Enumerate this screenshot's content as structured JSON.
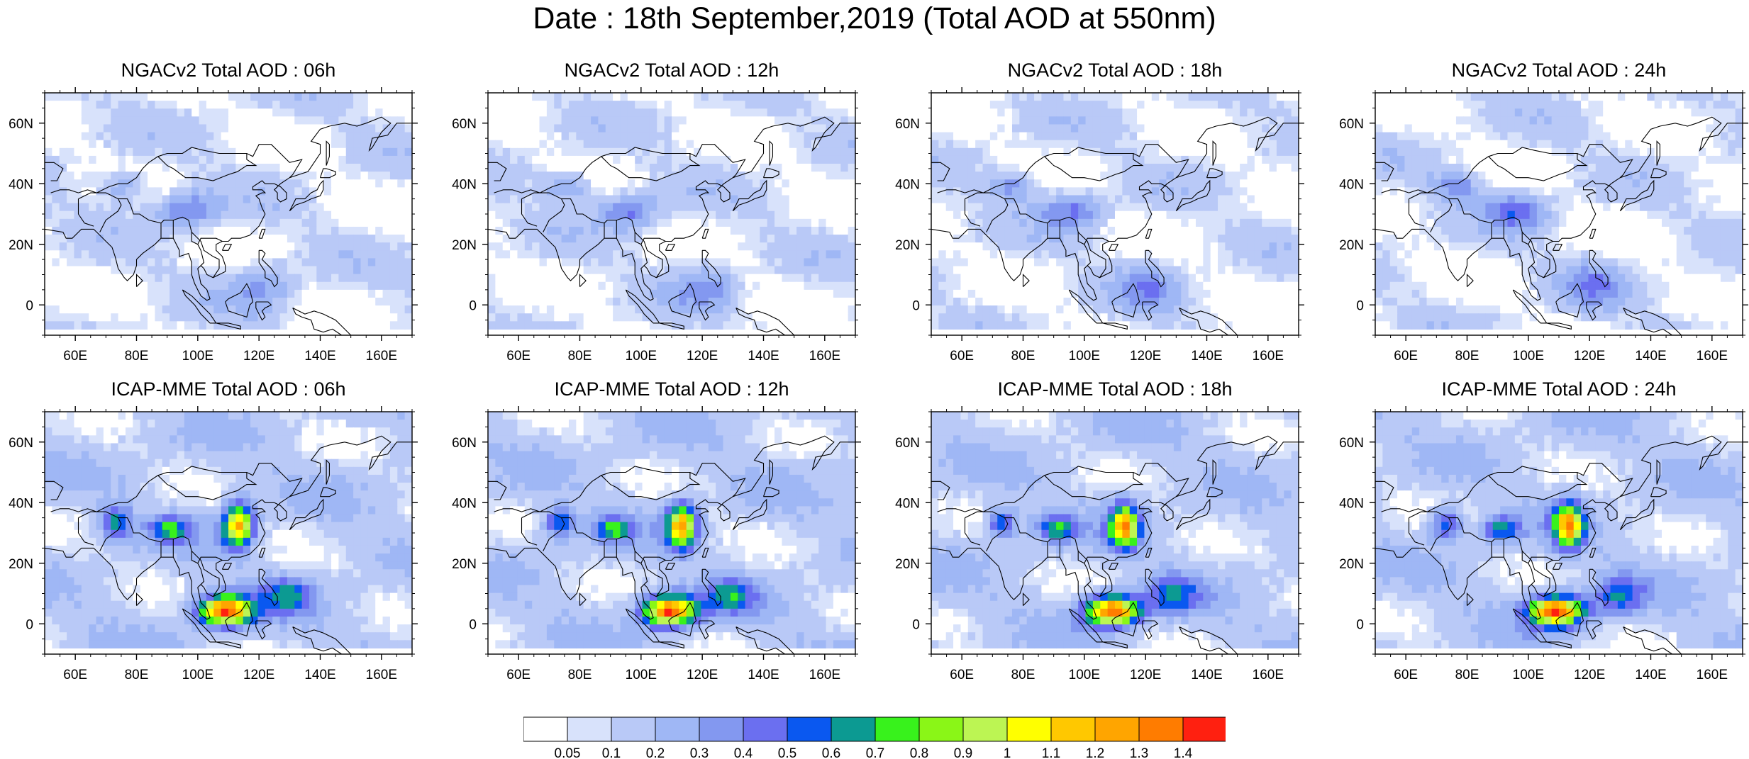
{
  "title": "Date : 18th September,2019 (Total AOD at 550nm)",
  "map": {
    "lon_range": [
      50,
      170
    ],
    "lat_range": [
      -10,
      70
    ],
    "lon_ticks": [
      "60E",
      "80E",
      "100E",
      "120E",
      "140E",
      "160E"
    ],
    "lat_ticks": [
      "60N",
      "40N",
      "20N",
      "0"
    ]
  },
  "panels": [
    {
      "id": "ngac-06",
      "title": "NGACv2 Total AOD : 06h",
      "model": "NGACv2",
      "lead": "06h"
    },
    {
      "id": "ngac-12",
      "title": "NGACv2 Total AOD : 12h",
      "model": "NGACv2",
      "lead": "12h"
    },
    {
      "id": "ngac-18",
      "title": "NGACv2 Total AOD : 18h",
      "model": "NGACv2",
      "lead": "18h"
    },
    {
      "id": "ngac-24",
      "title": "NGACv2 Total AOD : 24h",
      "model": "NGACv2",
      "lead": "24h"
    },
    {
      "id": "icap-06",
      "title": "ICAP-MME Total AOD : 06h",
      "model": "ICAP-MME",
      "lead": "06h"
    },
    {
      "id": "icap-12",
      "title": "ICAP-MME Total AOD : 12h",
      "model": "ICAP-MME",
      "lead": "12h"
    },
    {
      "id": "icap-18",
      "title": "ICAP-MME Total AOD : 18h",
      "model": "ICAP-MME",
      "lead": "18h"
    },
    {
      "id": "icap-24",
      "title": "ICAP-MME Total AOD : 24h",
      "model": "ICAP-MME",
      "lead": "24h"
    }
  ],
  "colorbar": {
    "labels": [
      "0.05",
      "0.1",
      "0.2",
      "0.3",
      "0.4",
      "0.5",
      "0.6",
      "0.7",
      "0.8",
      "0.9",
      "1",
      "1.1",
      "1.2",
      "1.3",
      "1.4"
    ],
    "colors": [
      "#ffffff",
      "#d8e2fb",
      "#b9c9f7",
      "#9fb7f5",
      "#8398f0",
      "#6b6ff0",
      "#0a58f0",
      "#0c9a92",
      "#38f21c",
      "#8af617",
      "#bcf553",
      "#ffff00",
      "#ffc800",
      "#ffa500",
      "#ff7c00",
      "#ff2010"
    ]
  }
}
